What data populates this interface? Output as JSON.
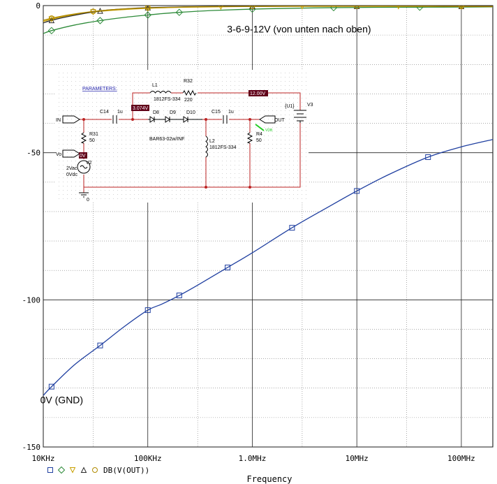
{
  "chart_data": {
    "type": "line",
    "xscale": "log",
    "xlim": [
      10000,
      200000000
    ],
    "ylim": [
      -150,
      0
    ],
    "grid": true,
    "xlabel": "Frequency",
    "x_ticks": [
      {
        "value": 10000,
        "label": "10KHz"
      },
      {
        "value": 100000,
        "label": "100KHz"
      },
      {
        "value": 1000000,
        "label": "1.0MHz"
      },
      {
        "value": 10000000,
        "label": "10MHz"
      },
      {
        "value": 100000000,
        "label": "100MHz"
      }
    ],
    "y_ticks": [
      {
        "value": 0,
        "label": "0"
      },
      {
        "value": -50,
        "label": "-50"
      },
      {
        "value": -100,
        "label": "-100"
      },
      {
        "value": -150,
        "label": "-150"
      }
    ],
    "legend": {
      "position": "bottom-left",
      "label": "DB(V(OUT))",
      "markers": [
        "square",
        "diamond",
        "triangle-down",
        "triangle-up",
        "circle"
      ]
    },
    "annotations": [
      {
        "text": "3-6-9-12V (von unten nach oben)",
        "x": 2800000,
        "y": -8
      },
      {
        "text": "0V (GND)",
        "x": 15000,
        "y": -134
      }
    ],
    "series": [
      {
        "marker": "square",
        "color": "#1f3fa0",
        "x": [
          10000,
          12000,
          20000,
          35000,
          60000,
          100000,
          135000,
          200000,
          300000,
          580000,
          1000000,
          2400000,
          5000000,
          10000000,
          20000000,
          48000000,
          100000000,
          200000000
        ],
        "y": [
          -132.5,
          -129.5,
          -122,
          -115.5,
          -109,
          -103.5,
          -101.5,
          -98.5,
          -95,
          -89,
          -84,
          -75.5,
          -69,
          -63,
          -57.5,
          -51.5,
          -48,
          -45.5
        ]
      },
      {
        "marker": "diamond",
        "color": "#2e8b3a",
        "x": [
          10000,
          12000,
          20000,
          35000,
          60000,
          100000,
          130000,
          200000,
          400000,
          1000000,
          2500000,
          6000000,
          15000000,
          40000000,
          100000000,
          200000000
        ],
        "y": [
          -9.5,
          -8.5,
          -6.6,
          -5.1,
          -4.0,
          -3.2,
          -2.8,
          -2.3,
          -1.7,
          -1.2,
          -0.9,
          -0.7,
          -0.6,
          -0.55,
          -0.5,
          -0.45
        ]
      },
      {
        "marker": "triangle-down",
        "color": "#c8a000",
        "x": [
          10000,
          12000,
          18000,
          30000,
          50000,
          100000,
          200000,
          500000,
          1000000,
          3000000,
          10000000,
          25000000,
          50000000,
          100000000,
          200000000
        ],
        "y": [
          -5.4,
          -4.6,
          -3.3,
          -2.2,
          -1.5,
          -0.9,
          -0.6,
          -0.4,
          -0.3,
          -0.25,
          -0.25,
          -0.25,
          -0.25,
          -0.3,
          -0.35
        ]
      },
      {
        "marker": "triangle-up",
        "color": "#2a2a2a",
        "x": [
          10000,
          12000,
          18000,
          35000,
          60000,
          100000,
          300000,
          1000000,
          3000000,
          10000000,
          40000000,
          100000000,
          200000000
        ],
        "y": [
          -5.9,
          -5.0,
          -3.6,
          -1.8,
          -1.1,
          -0.7,
          -0.35,
          -0.25,
          -0.2,
          -0.2,
          -0.2,
          -0.25,
          -0.3
        ]
      },
      {
        "marker": "circle",
        "color": "#b08a00",
        "x": [
          10000,
          12000,
          18000,
          30000,
          55000,
          100000,
          300000,
          1000000,
          3000000,
          10000000,
          30000000,
          100000000,
          200000000
        ],
        "y": [
          -5.0,
          -4.3,
          -3.1,
          -2.0,
          -1.2,
          -0.8,
          -0.4,
          -0.25,
          -0.2,
          -0.2,
          -0.2,
          -0.25,
          -0.3
        ]
      }
    ]
  },
  "schematic": {
    "parameters_label": "PARAMETERS:",
    "L1": {
      "name": "L1",
      "value": "1812FS-334"
    },
    "R32": {
      "name": "R32",
      "value": "220"
    },
    "voltage_12": "12.00V",
    "voltage_3": "3.074V",
    "C14": {
      "name": "C14",
      "value": "1u"
    },
    "C15": {
      "name": "C15",
      "value": "1u"
    },
    "diodes": [
      "D8",
      "D9",
      "D10"
    ],
    "diode_model": "BAR63-02w/INF",
    "in_label": "IN",
    "out_label": "OUT",
    "vo_label": "Vo",
    "R31": {
      "name": "R31",
      "value": "50"
    },
    "R4": {
      "name": "R4",
      "value": "50"
    },
    "L2": {
      "name": "L2",
      "value": "1812FS-334"
    },
    "V2": {
      "name": "V2",
      "vac": "2Vac",
      "vdc": "0Vdc"
    },
    "V3": {
      "name": "V3",
      "value": "{U1}"
    },
    "gnd": "0",
    "zero_v": "0V",
    "vdb": "VDB"
  }
}
